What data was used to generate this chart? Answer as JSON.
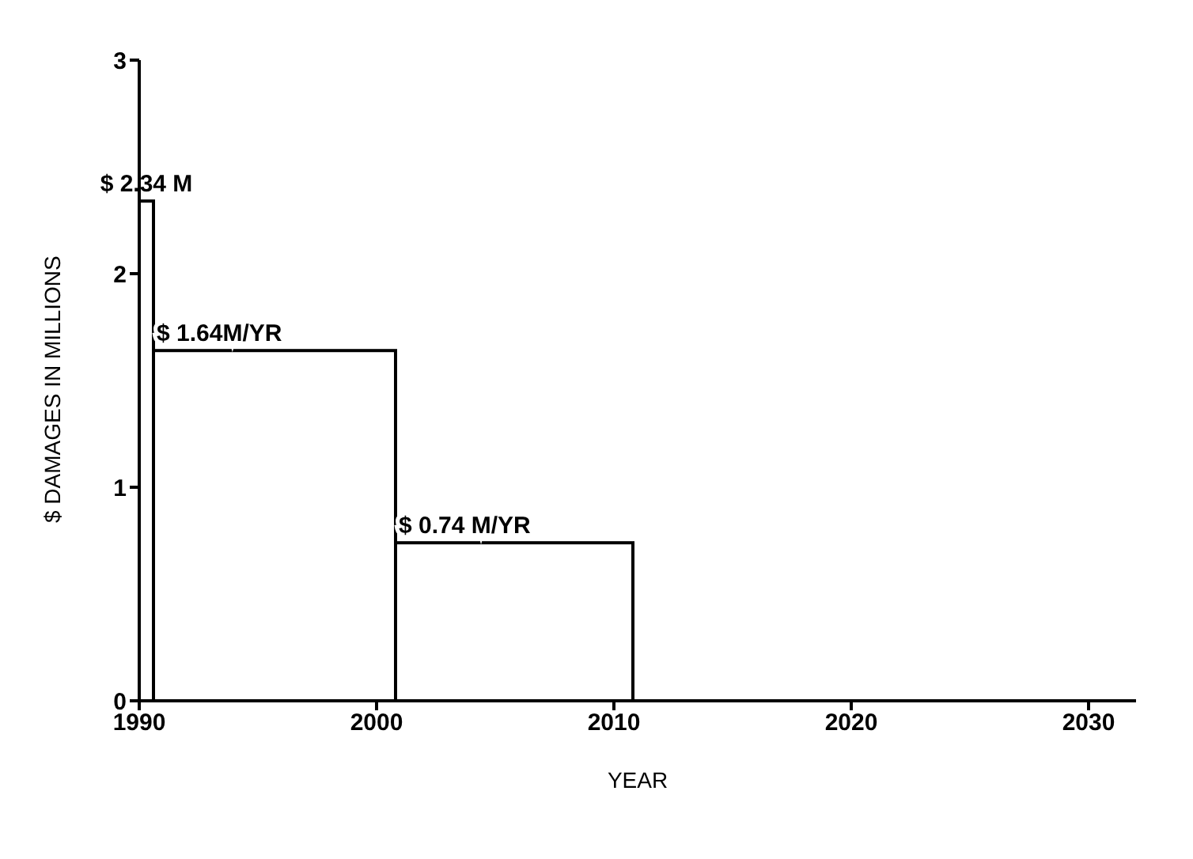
{
  "chart_data": {
    "type": "histogram",
    "xlabel": "YEAR",
    "ylabel": "$ DAMAGES IN MILLIONS",
    "bins": [
      1990,
      1990.6,
      2000.8,
      2010.8
    ],
    "values": [
      2.34,
      1.64,
      0.74
    ],
    "value_labels": [
      "$ 2.34 M",
      "$ 1.64M/YR",
      "$ 0.74 M/YR"
    ],
    "color": "#000000",
    "xlim": [
      1990,
      2032
    ],
    "xticks": [
      1990,
      2000,
      2010,
      2020,
      2030
    ],
    "ylim": [
      0,
      3
    ],
    "yticks": [
      0,
      1,
      2,
      3
    ],
    "grid": false,
    "legend": false
  }
}
